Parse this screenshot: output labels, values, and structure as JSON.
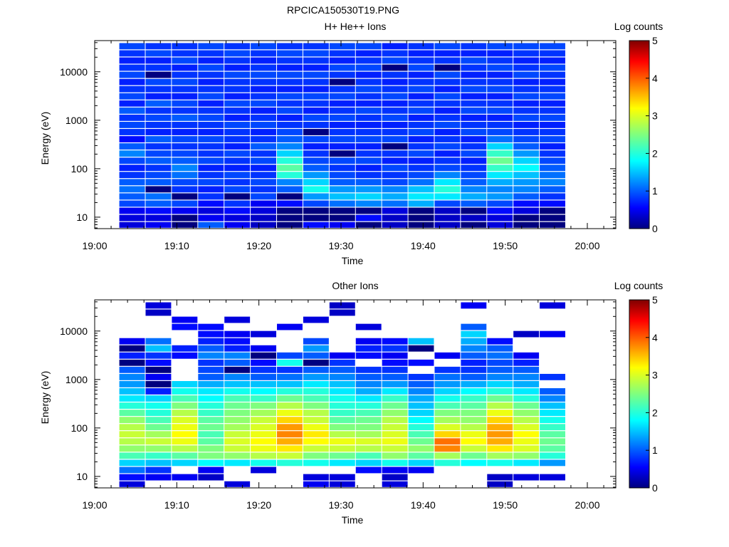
{
  "figure_title": "RPCICA150530T19.PNG",
  "chart_data": [
    {
      "type": "heatmap",
      "title": "H+ He++ Ions",
      "xlabel": "Time",
      "ylabel": "Energy (eV)",
      "colorbar_label": "Log counts",
      "y_scale": "log",
      "ylim": [
        5.8,
        44000
      ],
      "x_ticks": [
        "19:00",
        "19:10",
        "19:20",
        "19:30",
        "19:40",
        "19:50",
        "20:00"
      ],
      "y_ticks": [
        "10",
        "100",
        "1000",
        "10000"
      ],
      "colorbar_ticks": [
        "0",
        "1",
        "2",
        "3",
        "4",
        "5"
      ],
      "colorbar_range": [
        0,
        5
      ],
      "time_start": "19:03",
      "time_step_minutes": 3.2,
      "energy_bins_eV": [
        6.7,
        9.4,
        13.3,
        18.6,
        26.2,
        36.8,
        51.7,
        72.6,
        102,
        143,
        201,
        283,
        397,
        558,
        784,
        1100,
        1550,
        2170,
        3050,
        4290,
        6030,
        8470,
        11900,
        16700,
        23500,
        33000
      ],
      "log_counts": [
        [
          0.4,
          0.4,
          0.5,
          0.9,
          1.0,
          1.1,
          1.0,
          0.8,
          0.7,
          0.9,
          1.2,
          1.0,
          0.6,
          0.8,
          0.9,
          0.8,
          1.0,
          0.7,
          0.9,
          0.8,
          0.7,
          0.9,
          0.8,
          0.7,
          0.8,
          0.9
        ],
        [
          0.5,
          0.4,
          0.6,
          1.0,
          1.1,
          0.0,
          1.0,
          0.9,
          0.8,
          1.0,
          0.9,
          0.8,
          1.0,
          0.7,
          0.8,
          0.9,
          0.8,
          1.0,
          0.7,
          0.8,
          0.9,
          0.0,
          0.8,
          0.7,
          0.9,
          0.8
        ],
        [
          0.0,
          0.0,
          0.5,
          0.9,
          0.0,
          0.8,
          0.9,
          1.1,
          1.2,
          1.0,
          0.9,
          0.8,
          0.9,
          0.7,
          0.8,
          1.0,
          0.8,
          0.9,
          0.7,
          0.8,
          0.9,
          0.8,
          0.7,
          0.9,
          0.8,
          0.8
        ],
        [
          1.0,
          0.5,
          0.4,
          0.6,
          0.8,
          0.7,
          0.9,
          0.8,
          0.7,
          0.9,
          0.8,
          0.8,
          0.9,
          0.7,
          0.8,
          0.9,
          0.8,
          0.7,
          0.9,
          0.8,
          0.7,
          0.8,
          0.9,
          0.7,
          0.8,
          0.9
        ],
        [
          0.5,
          0.4,
          0.6,
          0.8,
          0.0,
          0.9,
          0.8,
          0.9,
          0.7,
          0.8,
          0.9,
          0.7,
          0.8,
          0.8,
          0.9,
          0.7,
          0.8,
          0.9,
          0.7,
          0.8,
          0.8,
          0.9,
          0.7,
          0.8,
          0.9,
          0.8
        ],
        [
          0.3,
          0.3,
          0.4,
          0.5,
          0.9,
          0.8,
          0.9,
          0.8,
          0.7,
          0.9,
          0.8,
          1.0,
          0.8,
          0.7,
          0.9,
          0.8,
          0.7,
          0.9,
          0.8,
          0.7,
          0.8,
          0.9,
          0.8,
          0.7,
          0.8,
          0.9
        ],
        [
          0.0,
          0.0,
          0.0,
          0.6,
          0.0,
          1.0,
          1.2,
          2.0,
          2.3,
          2.0,
          1.6,
          1.2,
          1.0,
          0.9,
          0.8,
          0.7,
          0.9,
          0.8,
          0.9,
          0.7,
          0.8,
          0.9,
          0.7,
          0.8,
          0.9,
          0.8
        ],
        [
          0.6,
          0.0,
          0.0,
          0.9,
          1.3,
          1.9,
          1.6,
          1.3,
          1.0,
          0.9,
          0.8,
          0.7,
          0.9,
          0.0,
          0.8,
          0.9,
          0.7,
          0.8,
          0.9,
          0.7,
          0.8,
          0.9,
          0.7,
          0.8,
          0.9,
          0.8
        ],
        [
          0.5,
          0.0,
          0.0,
          1.1,
          1.5,
          1.3,
          1.0,
          0.9,
          0.8,
          0.9,
          0.0,
          0.7,
          0.9,
          0.8,
          0.7,
          0.9,
          0.8,
          0.7,
          0.9,
          0.8,
          0.0,
          0.8,
          0.9,
          0.7,
          0.8,
          0.9
        ],
        [
          0.0,
          0.6,
          0.0,
          1.2,
          1.6,
          1.3,
          1.0,
          0.8,
          0.7,
          0.9,
          0.8,
          0.7,
          0.9,
          0.8,
          0.7,
          0.8,
          0.9,
          0.7,
          0.8,
          0.9,
          0.8,
          0.7,
          0.9,
          0.8,
          0.7,
          0.9
        ],
        [
          0.3,
          0.3,
          0.4,
          1.1,
          1.4,
          1.2,
          0.9,
          0.8,
          0.9,
          0.7,
          0.8,
          0.0,
          0.9,
          0.8,
          0.7,
          0.9,
          0.8,
          0.7,
          0.9,
          0.8,
          0.7,
          0.8,
          0.0,
          0.9,
          0.8,
          0.7
        ],
        [
          0.0,
          0.0,
          0.0,
          1.4,
          1.7,
          1.5,
          1.1,
          0.9,
          0.8,
          0.7,
          0.9,
          0.8,
          0.7,
          0.9,
          0.8,
          0.7,
          0.9,
          0.8,
          0.7,
          0.9,
          0.8,
          0.7,
          0.9,
          0.8,
          0.7,
          0.8
        ],
        [
          0.3,
          0.3,
          0.3,
          0.9,
          1.7,
          2.0,
          1.7,
          1.2,
          0.9,
          0.8,
          0.7,
          0.9,
          0.8,
          0.7,
          0.9,
          0.8,
          0.7,
          0.8,
          0.9,
          0.7,
          0.8,
          0.9,
          0.0,
          0.8,
          0.7,
          0.9
        ],
        [
          0.0,
          0.3,
          0.0,
          1.0,
          1.4,
          1.2,
          1.0,
          0.9,
          0.8,
          0.7,
          0.9,
          0.8,
          0.7,
          0.9,
          0.8,
          0.7,
          0.9,
          0.8,
          0.7,
          0.9,
          0.8,
          0.7,
          0.8,
          0.9,
          0.7,
          0.8
        ],
        [
          0.4,
          0.4,
          0.6,
          0.9,
          1.3,
          1.2,
          1.4,
          1.7,
          2.1,
          2.4,
          2.1,
          1.6,
          1.1,
          0.9,
          0.8,
          0.7,
          0.9,
          0.8,
          0.7,
          0.9,
          0.8,
          0.7,
          0.9,
          0.8,
          0.7,
          0.9
        ],
        [
          0.0,
          0.0,
          0.4,
          0.6,
          1.0,
          1.2,
          1.3,
          1.5,
          1.8,
          1.6,
          1.3,
          1.0,
          0.9,
          0.8,
          0.7,
          0.9,
          0.8,
          0.7,
          0.9,
          0.8,
          0.7,
          0.9,
          0.8,
          0.7,
          0.8,
          0.9
        ],
        [
          0.0,
          0.0,
          0.0,
          0.6,
          0.8,
          1.0,
          1.2,
          1.1,
          1.0,
          0.9,
          0.8,
          0.7,
          0.9,
          0.8,
          0.7,
          0.9,
          0.8,
          0.7,
          0.9,
          0.8,
          0.7,
          0.8,
          0.9,
          0.7,
          0.8,
          0.9
        ]
      ]
    },
    {
      "type": "heatmap",
      "title": "Other Ions",
      "xlabel": "Time",
      "ylabel": "Energy (eV)",
      "colorbar_label": "Log counts",
      "y_scale": "log",
      "ylim": [
        5.8,
        44000
      ],
      "x_ticks": [
        "19:00",
        "19:10",
        "19:20",
        "19:30",
        "19:40",
        "19:50",
        "20:00"
      ],
      "y_ticks": [
        "10",
        "100",
        "1000",
        "10000"
      ],
      "colorbar_ticks": [
        "0",
        "1",
        "2",
        "3",
        "4",
        "5"
      ],
      "colorbar_range": [
        0,
        5
      ],
      "time_start": "19:03",
      "time_step_minutes": 3.2,
      "energy_bins_eV": [
        6.7,
        9.4,
        13.3,
        18.6,
        26.2,
        36.8,
        51.7,
        72.6,
        102,
        143,
        201,
        283,
        397,
        558,
        784,
        1100,
        1550,
        2170,
        3050,
        4290,
        6030,
        8470,
        11900,
        16700,
        23500,
        33000
      ],
      "log_counts": [
        [
          0.4,
          0.6,
          1.1,
          1.6,
          2.2,
          2.6,
          2.8,
          2.9,
          2.8,
          2.6,
          2.3,
          2.0,
          1.7,
          1.5,
          1.3,
          1.2,
          1.0,
          0.0,
          0.7,
          0.0,
          0.5,
          null,
          null,
          null,
          null,
          null
        ],
        [
          null,
          0.5,
          0.8,
          1.5,
          2.1,
          2.6,
          2.9,
          2.7,
          2.4,
          2.2,
          2.0,
          1.9,
          1.6,
          0.7,
          0.0,
          0.5,
          0.0,
          0.6,
          0.8,
          1.5,
          1.1,
          null,
          null,
          null,
          0.3,
          0.4
        ],
        [
          null,
          0.5,
          null,
          1.6,
          2.3,
          2.8,
          3.1,
          3.2,
          3.1,
          3.0,
          2.8,
          2.5,
          2.2,
          1.9,
          1.6,
          null,
          null,
          null,
          0.6,
          0.7,
          null,
          null,
          0.6,
          0.5,
          null,
          null
        ],
        [
          null,
          0.3,
          0.5,
          1.8,
          2.5,
          2.5,
          2.3,
          2.2,
          2.4,
          2.3,
          2.1,
          2.0,
          1.8,
          1.7,
          1.4,
          1.0,
          0.9,
          0.8,
          1.2,
          1.0,
          0.7,
          0.6,
          0.6,
          null,
          null,
          null
        ],
        [
          0.4,
          null,
          null,
          1.7,
          2.6,
          2.9,
          3.0,
          2.9,
          2.7,
          2.6,
          2.5,
          2.4,
          2.2,
          1.9,
          1.5,
          1.2,
          0.0,
          1.0,
          1.2,
          0.7,
          0.6,
          0.5,
          null,
          0.4,
          null,
          null
        ],
        [
          null,
          null,
          0.4,
          1.9,
          2.8,
          3.1,
          3.2,
          3.1,
          3.0,
          2.9,
          2.7,
          2.5,
          2.1,
          1.8,
          1.5,
          1.0,
          0.8,
          0.6,
          0.0,
          0.5,
          null,
          0.4,
          null,
          null,
          null,
          null
        ],
        [
          null,
          null,
          null,
          2.0,
          2.9,
          3.3,
          3.6,
          3.8,
          3.7,
          3.4,
          3.1,
          2.8,
          2.4,
          2.0,
          1.5,
          1.1,
          0.8,
          1.9,
          0.9,
          null,
          null,
          null,
          0.5,
          null,
          null,
          null
        ],
        [
          0.5,
          0.4,
          null,
          1.9,
          2.5,
          2.9,
          3.2,
          3.3,
          3.1,
          2.9,
          2.8,
          2.5,
          2.2,
          2.0,
          1.7,
          1.3,
          1.0,
          0.0,
          1.0,
          1.3,
          0.9,
          null,
          null,
          0.4,
          null,
          null
        ],
        [
          0.4,
          0.4,
          null,
          1.7,
          2.4,
          2.9,
          3.1,
          2.8,
          2.5,
          2.3,
          2.1,
          2.0,
          1.9,
          1.7,
          1.5,
          1.2,
          1.0,
          0.8,
          0.5,
          null,
          null,
          null,
          null,
          null,
          0.3,
          0.3
        ],
        [
          null,
          null,
          0.6,
          1.6,
          2.2,
          2.8,
          3.0,
          2.7,
          2.5,
          2.4,
          2.2,
          2.0,
          1.7,
          1.4,
          1.2,
          1.0,
          0.8,
          null,
          0.6,
          0.7,
          0.5,
          null,
          0.4,
          null,
          null,
          null
        ],
        [
          0.4,
          0.3,
          0.5,
          1.9,
          2.6,
          2.9,
          3.1,
          3.0,
          2.9,
          2.8,
          2.6,
          2.4,
          2.1,
          1.7,
          1.3,
          1.0,
          0.8,
          0.6,
          0.5,
          0.8,
          0.6,
          null,
          null,
          null,
          null,
          null
        ],
        [
          null,
          null,
          0.5,
          1.6,
          2.3,
          2.6,
          2.4,
          2.2,
          2.0,
          1.8,
          1.6,
          1.5,
          1.4,
          1.2,
          1.0,
          0.8,
          null,
          0.6,
          null,
          0.0,
          1.5,
          null,
          null,
          null,
          null,
          null
        ],
        [
          null,
          null,
          null,
          2.0,
          2.7,
          3.8,
          3.9,
          3.4,
          3.0,
          2.7,
          2.5,
          2.2,
          1.9,
          1.6,
          1.3,
          1.1,
          0.8,
          null,
          0.5,
          null,
          null,
          null,
          null,
          null,
          null,
          null
        ],
        [
          null,
          null,
          null,
          1.8,
          2.4,
          2.9,
          3.2,
          3.1,
          2.8,
          2.6,
          2.5,
          2.3,
          2.1,
          1.8,
          1.4,
          1.0,
          0.8,
          0.7,
          1.0,
          1.2,
          1.4,
          1.6,
          1.0,
          null,
          null,
          0.5
        ],
        [
          0.3,
          0.3,
          null,
          1.9,
          2.7,
          3.3,
          3.6,
          3.7,
          3.6,
          3.4,
          3.1,
          2.8,
          2.4,
          2.0,
          1.6,
          1.2,
          1.0,
          0.9,
          1.1,
          1.0,
          0.6,
          null,
          null,
          null,
          null,
          null
        ],
        [
          null,
          0.4,
          null,
          1.7,
          2.6,
          3.0,
          3.1,
          3.2,
          3.0,
          2.8,
          2.6,
          2.4,
          2.0,
          1.7,
          1.4,
          1.2,
          1.0,
          0.7,
          0.5,
          null,
          null,
          0.3,
          null,
          null,
          null,
          null
        ],
        [
          null,
          0.4,
          null,
          1.3,
          2.0,
          2.3,
          2.4,
          2.3,
          2.1,
          1.9,
          1.7,
          1.5,
          1.2,
          1.0,
          null,
          0.8,
          null,
          null,
          null,
          null,
          null,
          0.5,
          null,
          null,
          null,
          0.4
        ]
      ]
    }
  ]
}
